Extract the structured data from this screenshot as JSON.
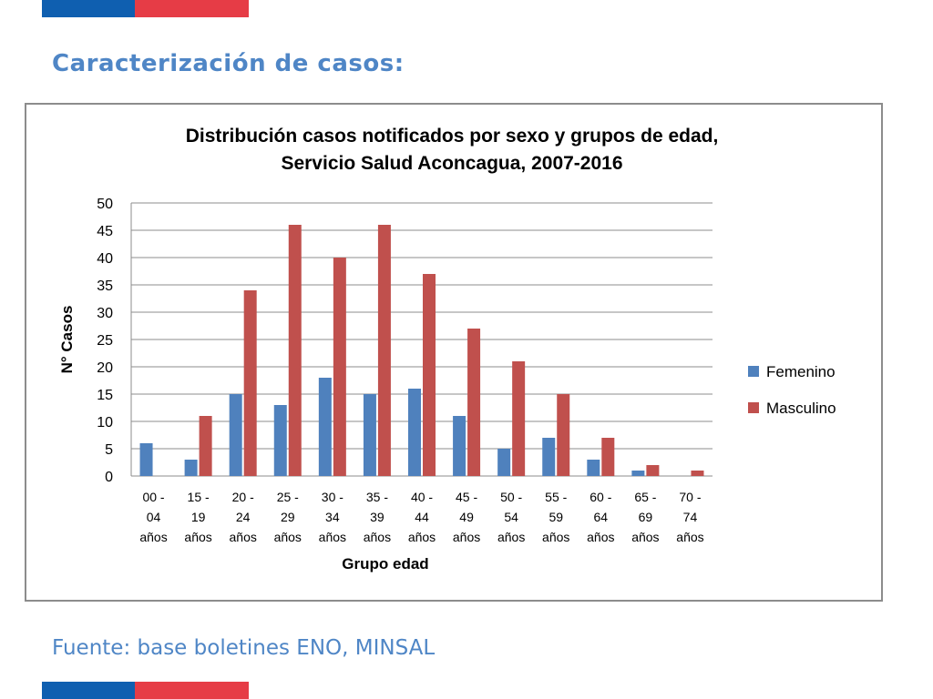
{
  "slide": {
    "title": "Caracterización de casos:",
    "source": "Fuente: base boletines ENO, MINSAL"
  },
  "colors": {
    "flag_blue": "#0f5fb0",
    "flag_red": "#e63c46",
    "femenino": "#4f81bd",
    "masculino": "#c0504d"
  },
  "chart_data": {
    "type": "bar",
    "title": [
      "Distribución casos notificados por sexo y grupos de edad,",
      "Servicio Salud Aconcagua, 2007-2016"
    ],
    "xlabel": "Grupo edad",
    "ylabel": "N° Casos",
    "ylim": [
      0,
      50
    ],
    "yticks": [
      0,
      5,
      10,
      15,
      20,
      25,
      30,
      35,
      40,
      45,
      50
    ],
    "grid": true,
    "legend_position": "right",
    "categories": [
      [
        "00 -",
        "04",
        "años"
      ],
      [
        "15 -",
        "19",
        "años"
      ],
      [
        "20 -",
        "24",
        "años"
      ],
      [
        "25 -",
        "29",
        "años"
      ],
      [
        "30 -",
        "34",
        "años"
      ],
      [
        "35 -",
        "39",
        "años"
      ],
      [
        "40 -",
        "44",
        "años"
      ],
      [
        "45 -",
        "49",
        "años"
      ],
      [
        "50 -",
        "54",
        "años"
      ],
      [
        "55 -",
        "59",
        "años"
      ],
      [
        "60 -",
        "64",
        "años"
      ],
      [
        "65 -",
        "69",
        "años"
      ],
      [
        "70 -",
        "74",
        "años"
      ]
    ],
    "series": [
      {
        "name": "Femenino",
        "color": "#4f81bd",
        "values": [
          6,
          3,
          15,
          13,
          18,
          15,
          16,
          11,
          5,
          7,
          3,
          1,
          0
        ]
      },
      {
        "name": "Masculino",
        "color": "#c0504d",
        "values": [
          0,
          11,
          34,
          46,
          40,
          46,
          37,
          27,
          21,
          15,
          7,
          2,
          1
        ]
      }
    ]
  }
}
